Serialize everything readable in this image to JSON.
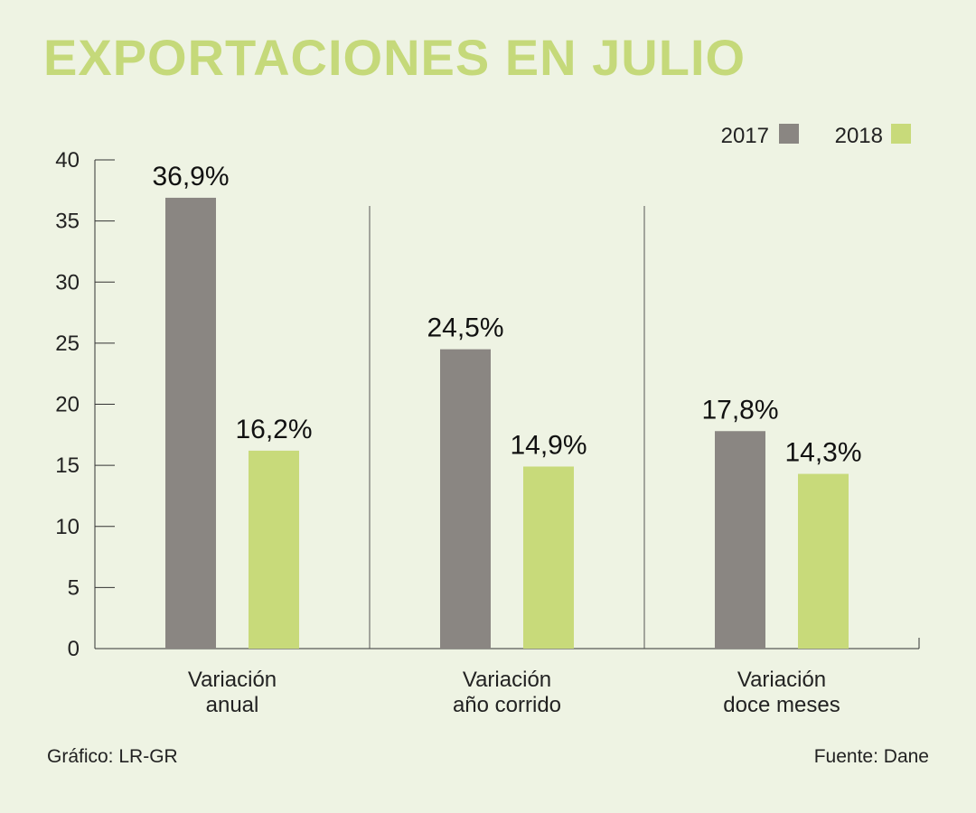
{
  "title": "EXPORTACIONES EN JULIO",
  "credit": "Gráfico: LR-GR",
  "source": "Fuente: Dane",
  "colors": {
    "2017": "#8a8682",
    "2018": "#c8da7a",
    "title": "#c5d97a"
  },
  "chart_data": {
    "type": "bar",
    "categories": [
      [
        "Variación",
        "anual"
      ],
      [
        "Variación",
        "año corrido"
      ],
      [
        "Variación",
        "doce meses"
      ]
    ],
    "series": [
      {
        "name": "2017",
        "values": [
          36.9,
          24.5,
          17.8
        ],
        "labels": [
          "36,9%",
          "24,5%",
          "17,8%"
        ]
      },
      {
        "name": "2018",
        "values": [
          16.2,
          14.9,
          14.3
        ],
        "labels": [
          "16,2%",
          "14,9%",
          "14,3%"
        ]
      }
    ],
    "ylim": [
      0,
      40
    ],
    "yticks": [
      "0",
      "5",
      "10",
      "15",
      "20",
      "25",
      "30",
      "35",
      "40"
    ],
    "legend": "top-right",
    "grid": false
  }
}
